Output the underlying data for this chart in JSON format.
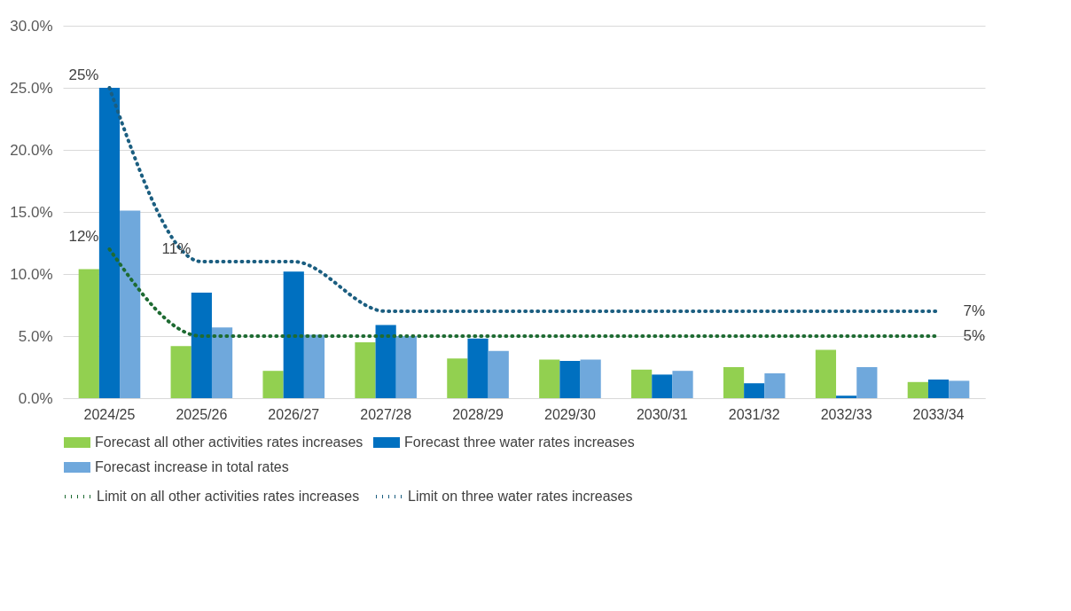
{
  "chart_data": {
    "type": "bar",
    "categories": [
      "2024/25",
      "2025/26",
      "2026/27",
      "2027/28",
      "2028/29",
      "2029/30",
      "2030/31",
      "2031/32",
      "2032/33",
      "2033/34"
    ],
    "series": [
      {
        "name": "Forecast all other activities rates increases",
        "color": "#92d050",
        "values": [
          10.4,
          4.2,
          2.2,
          4.5,
          3.2,
          3.1,
          2.3,
          2.5,
          3.9,
          1.3
        ]
      },
      {
        "name": "Forecast three water rates increases",
        "color": "#0070c0",
        "values": [
          25.0,
          8.5,
          10.2,
          5.9,
          4.8,
          3.0,
          1.9,
          1.2,
          0.2,
          1.5
        ]
      },
      {
        "name": "Forecast increase in total rates",
        "color": "#6fa8dc",
        "values": [
          15.1,
          5.7,
          5.1,
          5.0,
          3.8,
          3.1,
          2.2,
          2.0,
          2.5,
          1.4
        ]
      },
      {
        "name": "Limit on all other activities rates increases",
        "type": "line",
        "color": "#1e6b32",
        "line_style": "dotted",
        "values": [
          12,
          5,
          5,
          5,
          5,
          5,
          5,
          5,
          5,
          5
        ],
        "value_labels": [
          "12%",
          null,
          null,
          null,
          null,
          null,
          null,
          null,
          null,
          "5%"
        ]
      },
      {
        "name": "Limit on three water rates increases",
        "type": "line",
        "color": "#1b5e80",
        "line_style": "dotted",
        "values": [
          25,
          11,
          11,
          7,
          7,
          7,
          7,
          7,
          7,
          7
        ],
        "value_labels": [
          "25%",
          "11%",
          null,
          null,
          null,
          null,
          null,
          null,
          null,
          "7%"
        ]
      }
    ],
    "ylim": [
      0,
      30
    ],
    "yticks": [
      {
        "value": 0,
        "label": "0.0%"
      },
      {
        "value": 5,
        "label": "5.0%"
      },
      {
        "value": 10,
        "label": "10.0%"
      },
      {
        "value": 15,
        "label": "15.0%"
      },
      {
        "value": 20,
        "label": "20.0%"
      },
      {
        "value": 25,
        "label": "25.0%"
      },
      {
        "value": 30,
        "label": "30.0%"
      }
    ],
    "grid": "y",
    "legend": "bottom"
  }
}
